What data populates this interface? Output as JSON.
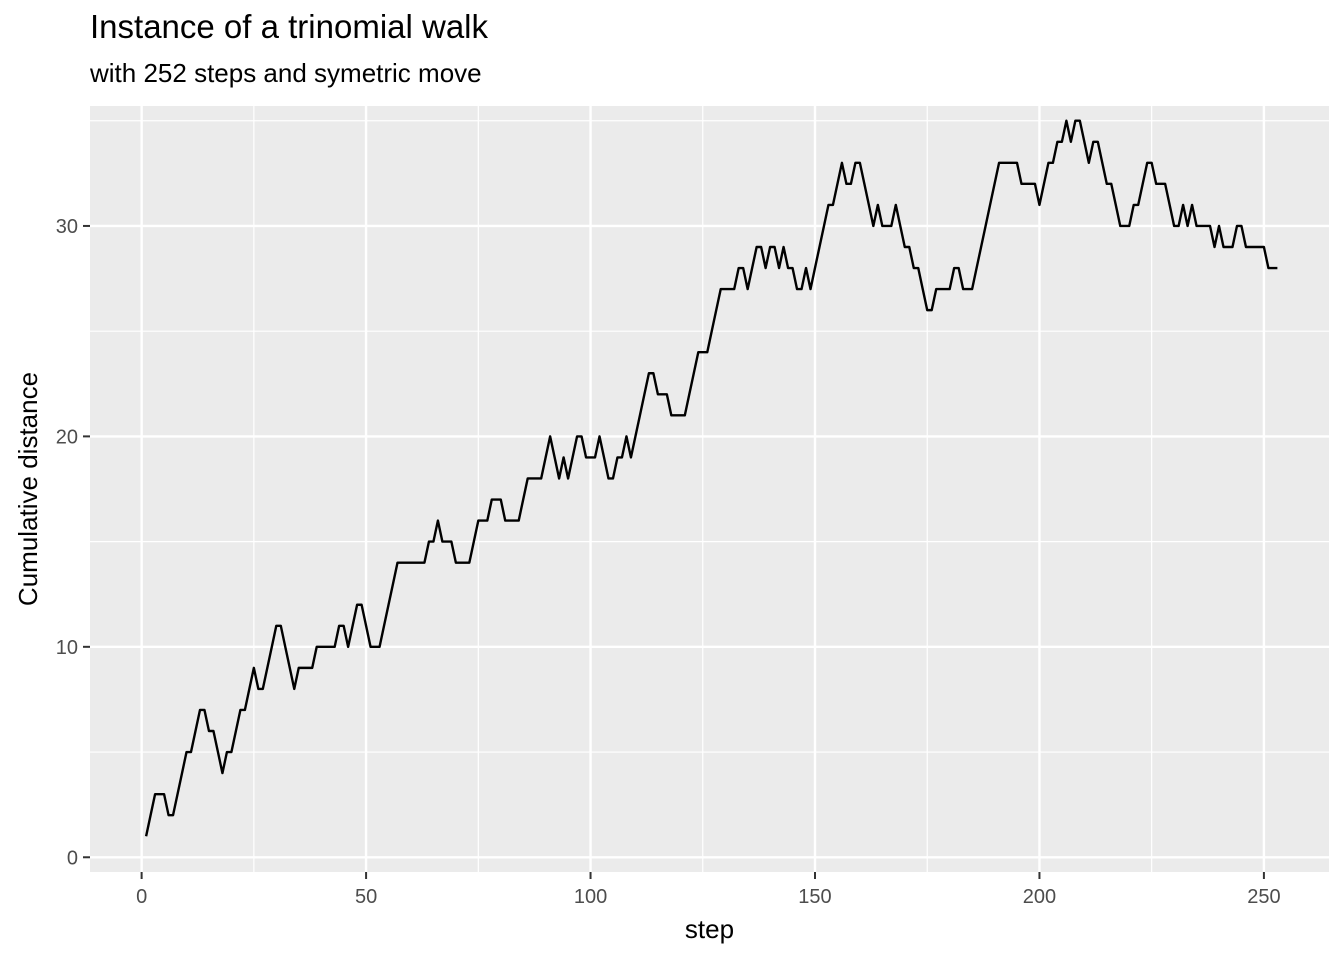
{
  "chart_data": {
    "type": "line",
    "title": "Instance of a trinomial walk",
    "subtitle": "with 252 steps and symetric move",
    "xlabel": "step",
    "ylabel": "Cumulative distance",
    "xlim": [
      -11.5,
      264.5
    ],
    "ylim": [
      -0.7,
      35.7
    ],
    "x_ticks": [
      0,
      50,
      100,
      150,
      200,
      250
    ],
    "y_ticks": [
      0,
      10,
      20,
      30
    ],
    "x_tick_labels": [
      "0",
      "50",
      "100",
      "150",
      "200",
      "250"
    ],
    "y_tick_labels": [
      "0",
      "10",
      "20",
      "30"
    ],
    "background": "#ebebeb",
    "grid": true,
    "line_color": "#000000",
    "x_start": 1,
    "y": [
      1,
      2,
      3,
      3,
      3,
      2,
      2,
      3,
      4,
      5,
      5,
      6,
      7,
      7,
      6,
      6,
      5,
      4,
      5,
      5,
      6,
      7,
      7,
      8,
      9,
      8,
      8,
      9,
      10,
      11,
      11,
      10,
      9,
      8,
      9,
      9,
      9,
      9,
      10,
      10,
      10,
      10,
      10,
      11,
      11,
      10,
      11,
      12,
      12,
      11,
      10,
      10,
      10,
      11,
      12,
      13,
      14,
      14,
      14,
      14,
      14,
      14,
      14,
      15,
      15,
      16,
      15,
      15,
      15,
      14,
      14,
      14,
      14,
      15,
      16,
      16,
      16,
      17,
      17,
      17,
      16,
      16,
      16,
      16,
      17,
      18,
      18,
      18,
      18,
      19,
      20,
      19,
      18,
      19,
      18,
      19,
      20,
      20,
      19,
      19,
      19,
      20,
      19,
      18,
      18,
      19,
      19,
      20,
      19,
      20,
      21,
      22,
      23,
      23,
      22,
      22,
      22,
      21,
      21,
      21,
      21,
      22,
      23,
      24,
      24,
      24,
      25,
      26,
      27,
      27,
      27,
      27,
      28,
      28,
      27,
      28,
      29,
      29,
      28,
      29,
      29,
      28,
      29,
      28,
      28,
      27,
      27,
      28,
      27,
      28,
      29,
      30,
      31,
      31,
      32,
      33,
      32,
      32,
      33,
      33,
      32,
      31,
      30,
      31,
      30,
      30,
      30,
      31,
      30,
      29,
      29,
      28,
      28,
      27,
      26,
      26,
      27,
      27,
      27,
      27,
      28,
      28,
      27,
      27,
      27,
      28,
      29,
      30,
      31,
      32,
      33,
      33,
      33,
      33,
      33,
      32,
      32,
      32,
      32,
      31,
      32,
      33,
      33,
      34,
      34,
      35,
      34,
      35,
      35,
      34,
      33,
      34,
      34,
      33,
      32,
      32,
      31,
      30,
      30,
      30,
      31,
      31,
      32,
      33,
      33,
      32,
      32,
      32,
      31,
      30,
      30,
      31,
      30,
      31,
      30,
      30,
      30,
      30,
      29,
      30,
      29,
      29,
      29,
      30,
      30,
      29,
      29,
      29,
      29,
      29,
      28,
      28,
      28
    ]
  }
}
